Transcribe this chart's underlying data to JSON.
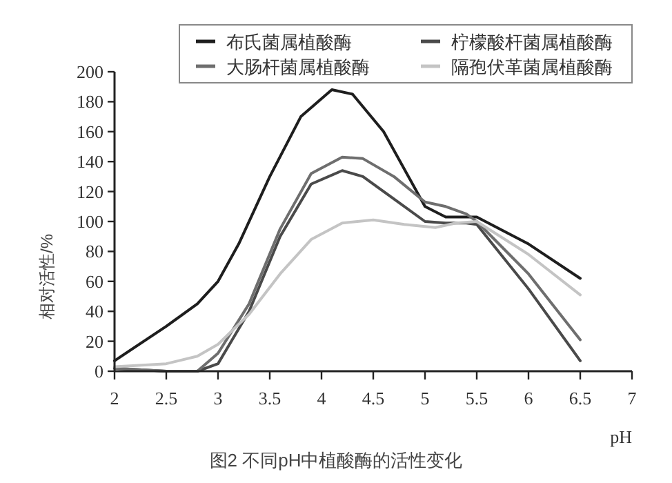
{
  "chart_data": {
    "type": "line",
    "title": "图2 不同pH中植酸酶的活性变化",
    "xlabel": "pH",
    "ylabel": "相对活性/%",
    "xlim": [
      2,
      7
    ],
    "xticks": [
      2,
      2.5,
      3,
      3.5,
      4,
      4.5,
      5,
      5.5,
      6,
      6.5,
      7
    ],
    "ylim": [
      0,
      200
    ],
    "yticks": [
      0,
      20,
      40,
      60,
      80,
      100,
      120,
      140,
      160,
      180,
      200
    ],
    "grid": false,
    "legend": "top",
    "marker": "none",
    "line_style": "solid",
    "series": [
      {
        "name": "布氏菌属植酸酶",
        "color": "#1e1e1e",
        "x": [
          2,
          2.5,
          2.8,
          3,
          3.2,
          3.5,
          3.8,
          4.1,
          4.3,
          4.6,
          5,
          5.2,
          5.5,
          6,
          6.5
        ],
        "values": [
          7,
          30,
          45,
          60,
          85,
          130,
          170,
          188,
          185,
          160,
          110,
          103,
          103,
          85,
          62
        ]
      },
      {
        "name": "柠檬酸杆菌属植酸酶",
        "color": "#4a4a4a",
        "x": [
          2,
          2.5,
          2.8,
          3,
          3.3,
          3.6,
          3.9,
          4.2,
          4.4,
          4.7,
          5,
          5.2,
          5.4,
          5.5,
          6,
          6.5
        ],
        "values": [
          2,
          0,
          0,
          5,
          40,
          90,
          125,
          134,
          130,
          115,
          100,
          99,
          99,
          98,
          55,
          7
        ]
      },
      {
        "name": "大肠杆菌属植酸酶",
        "color": "#6e6e6e",
        "x": [
          2,
          2.5,
          2.8,
          3,
          3.3,
          3.6,
          3.9,
          4.2,
          4.4,
          4.7,
          5,
          5.2,
          5.4,
          5.5,
          6,
          6.5
        ],
        "values": [
          2,
          0,
          0,
          12,
          45,
          95,
          132,
          143,
          142,
          130,
          113,
          110,
          105,
          100,
          65,
          21
        ]
      },
      {
        "name": "隔孢伏革菌属植酸酶",
        "color": "#c4c4c4",
        "x": [
          2,
          2.5,
          2.8,
          3,
          3.3,
          3.6,
          3.9,
          4.2,
          4.5,
          4.8,
          5.1,
          5.3,
          5.5,
          6,
          6.5
        ],
        "values": [
          3,
          5,
          10,
          18,
          38,
          65,
          88,
          99,
          101,
          98,
          96,
          99,
          100,
          78,
          51
        ]
      }
    ]
  }
}
